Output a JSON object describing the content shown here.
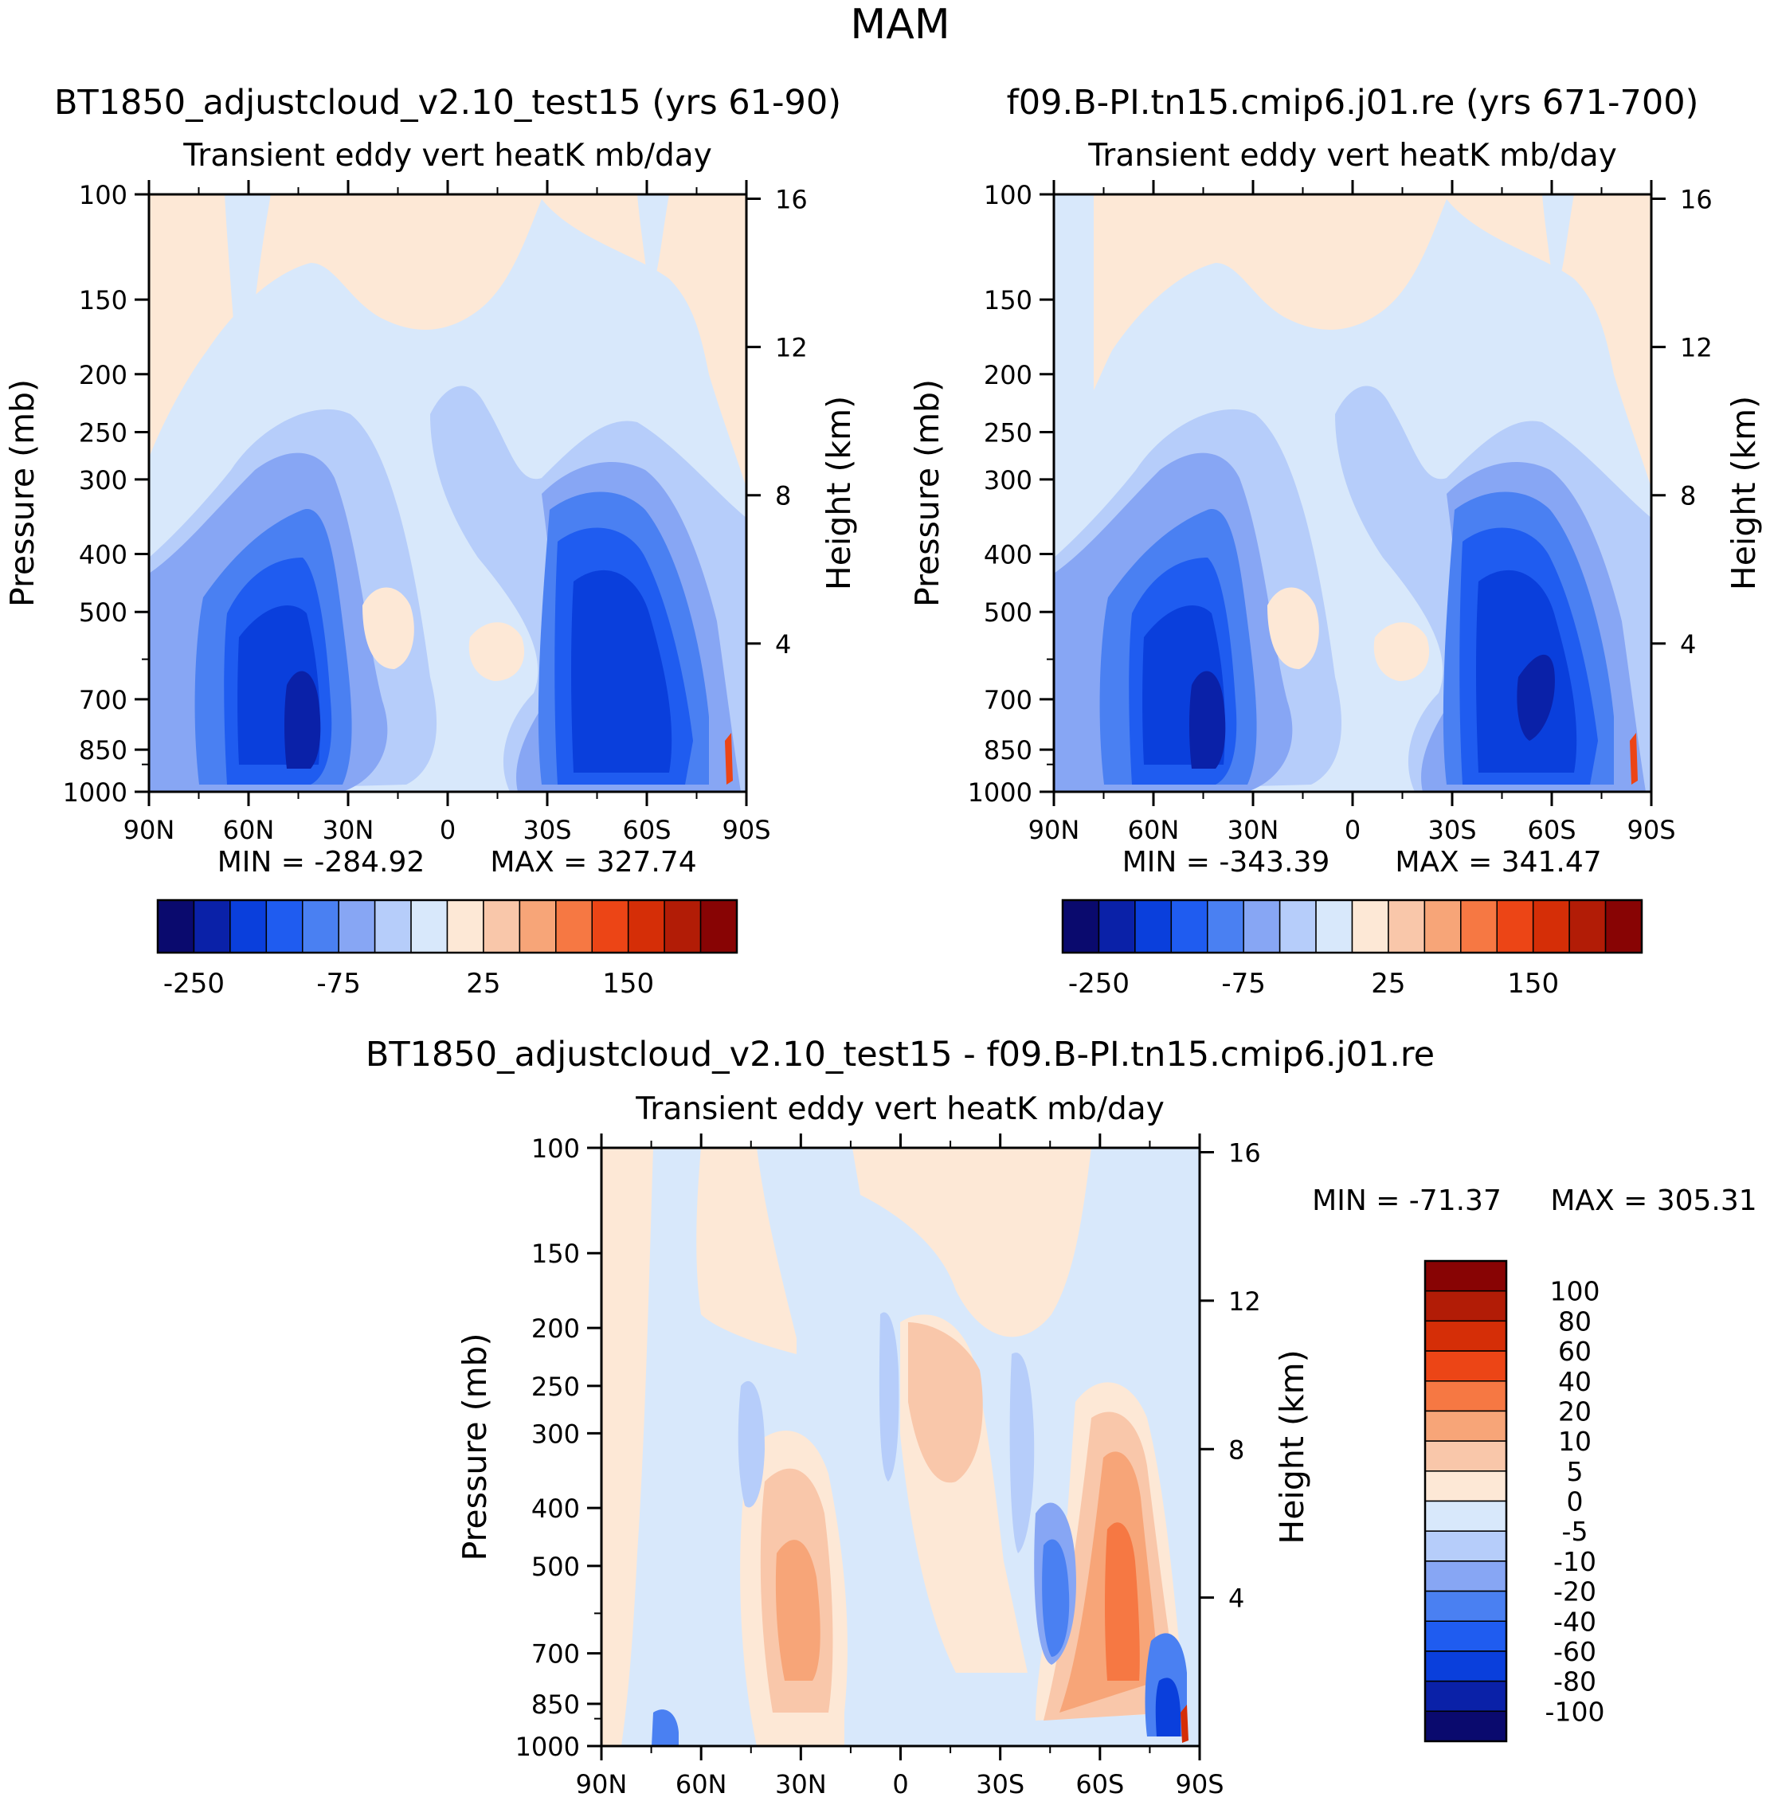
{
  "figure": {
    "title": "MAM"
  },
  "shared_colorbar": {
    "colors": [
      "#0a0a6e",
      "#0a21a8",
      "#0a3fdc",
      "#1f5cf0",
      "#4a80f2",
      "#87a6f4",
      "#b6cdfa",
      "#d8e8fb",
      "#fde8d6",
      "#f9c7aa",
      "#f7a578",
      "#f67843",
      "#ec4516",
      "#d52e07",
      "#b21c06",
      "#880404"
    ],
    "labels": [
      "-250",
      "-75",
      "25",
      "150"
    ]
  },
  "diff_colorbar": {
    "colors": [
      "#0a0a6e",
      "#0a21a8",
      "#0a3fdc",
      "#1f5cf0",
      "#4a80f2",
      "#87a6f4",
      "#b6cdfa",
      "#d8e8fb",
      "#fde8d6",
      "#f9c7aa",
      "#f7a578",
      "#f67843",
      "#ec4516",
      "#d52e07",
      "#b21c06",
      "#880404"
    ],
    "labels": [
      "100",
      "80",
      "60",
      "40",
      "20",
      "10",
      "5",
      "0",
      "-5",
      "-10",
      "-20",
      "-40",
      "-60",
      "-80",
      "-100"
    ]
  },
  "chart_data": [
    {
      "type": "heatmap",
      "title": "BT1850_adjustcloud_v2.10_test15 (yrs 61-90)",
      "subtitle": "Transient eddy vert heatK mb/day",
      "ylabel": "Pressure (mb)",
      "ylabel_right": "Height (km)",
      "x_ticks": [
        "90N",
        "60N",
        "30N",
        "0",
        "30S",
        "60S",
        "90S"
      ],
      "y_ticks": [
        "100",
        "150",
        "200",
        "250",
        "300",
        "400",
        "500",
        "700",
        "850",
        "1000"
      ],
      "height_ticks": [
        "16",
        "12",
        "8",
        "4"
      ],
      "min_label": "MIN = -284.92",
      "max_label": "MAX = 327.74",
      "xlim": [
        90,
        -90
      ],
      "ylim": [
        1000,
        100
      ]
    },
    {
      "type": "heatmap",
      "title": "f09.B-PI.tn15.cmip6.j01.re (yrs 671-700)",
      "subtitle": "Transient eddy vert heatK mb/day",
      "ylabel": "Pressure (mb)",
      "ylabel_right": "Height (km)",
      "x_ticks": [
        "90N",
        "60N",
        "30N",
        "0",
        "30S",
        "60S",
        "90S"
      ],
      "y_ticks": [
        "100",
        "150",
        "200",
        "250",
        "300",
        "400",
        "500",
        "700",
        "850",
        "1000"
      ],
      "height_ticks": [
        "16",
        "12",
        "8",
        "4"
      ],
      "min_label": "MIN = -343.39",
      "max_label": "MAX = 341.47",
      "xlim": [
        90,
        -90
      ],
      "ylim": [
        1000,
        100
      ]
    },
    {
      "type": "heatmap",
      "title": "BT1850_adjustcloud_v2.10_test15 - f09.B-PI.tn15.cmip6.j01.re",
      "subtitle": "Transient eddy vert heatK mb/day",
      "ylabel": "Pressure (mb)",
      "ylabel_right": "Height (km)",
      "x_ticks": [
        "90N",
        "60N",
        "30N",
        "0",
        "30S",
        "60S",
        "90S"
      ],
      "y_ticks": [
        "100",
        "150",
        "200",
        "250",
        "300",
        "400",
        "500",
        "700",
        "850",
        "1000"
      ],
      "height_ticks": [
        "16",
        "12",
        "8",
        "4"
      ],
      "min_label": "MIN = -71.37",
      "max_label": "MAX = 305.31",
      "xlim": [
        90,
        -90
      ],
      "ylim": [
        1000,
        100
      ]
    }
  ]
}
